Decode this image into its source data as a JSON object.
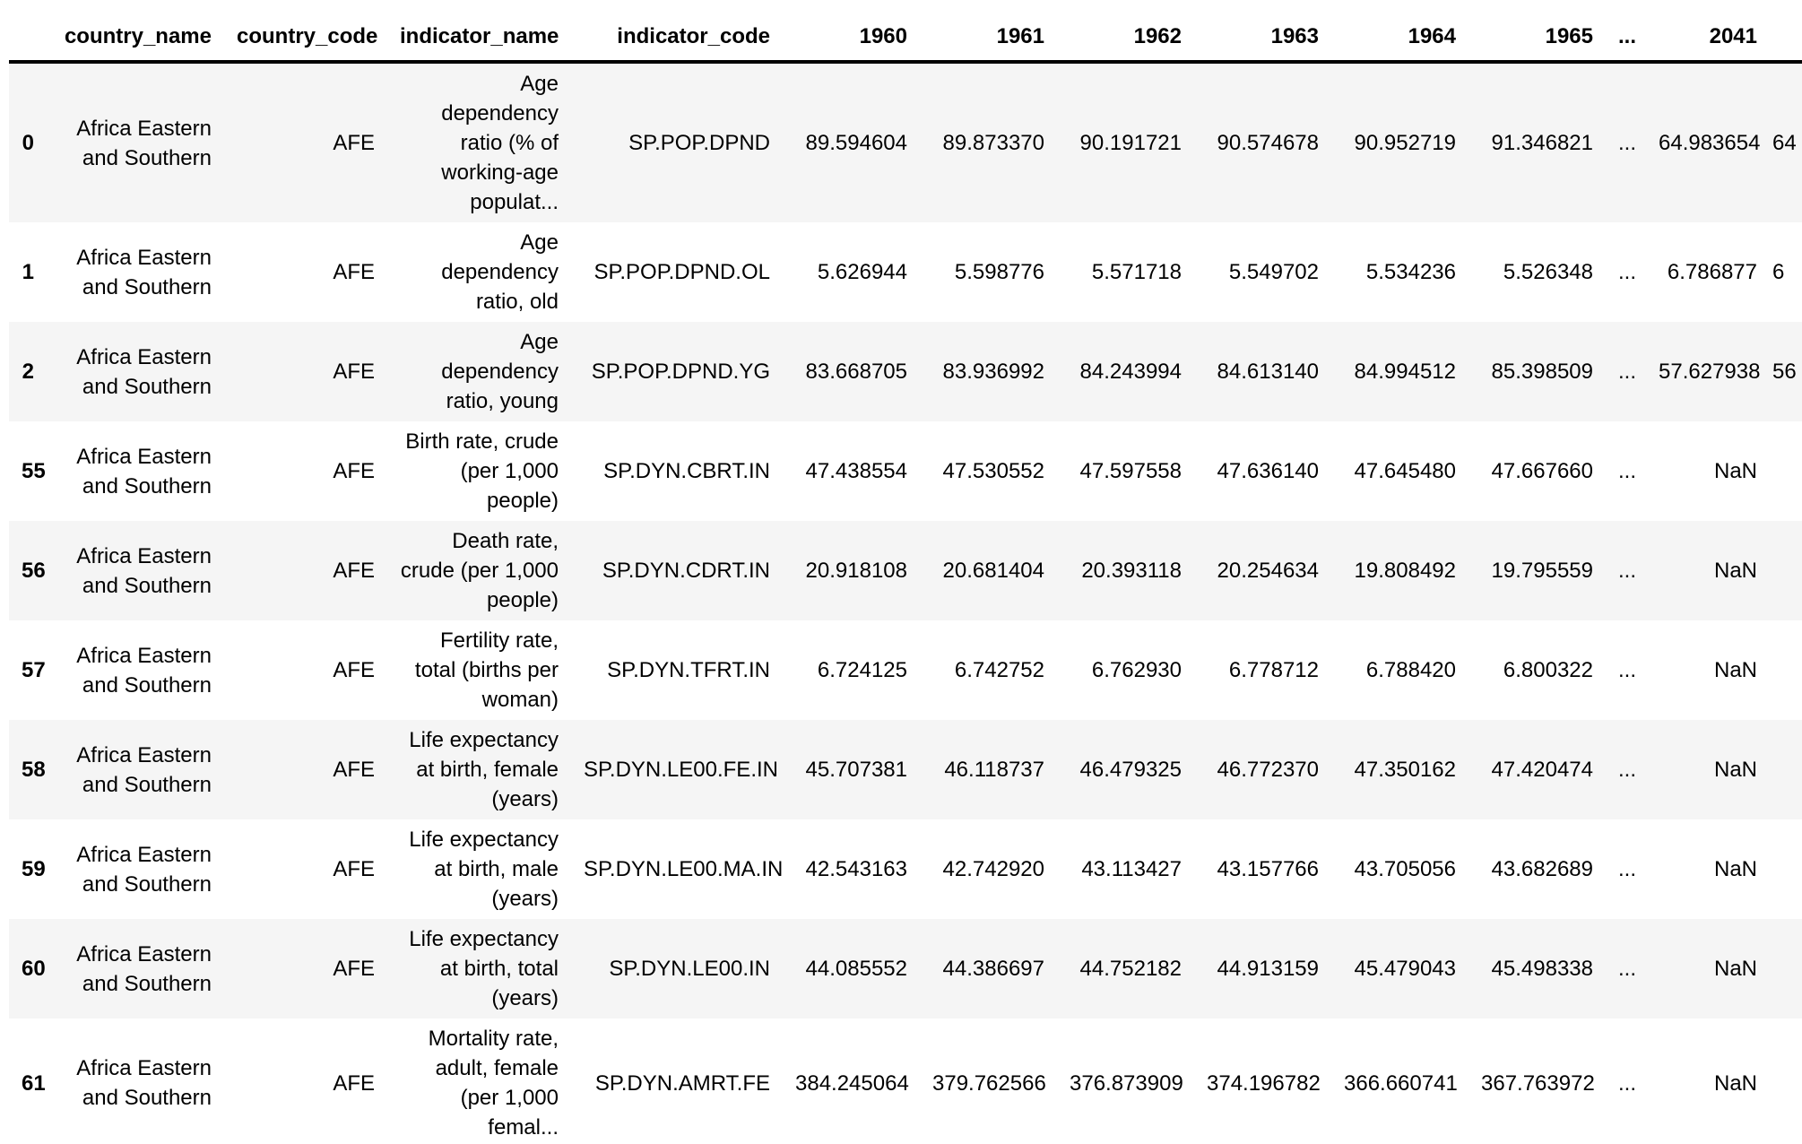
{
  "colors": {
    "row_stripe": "#f5f5f5",
    "header_rule": "#000000",
    "text": "#000000",
    "background": "#ffffff"
  },
  "table": {
    "columns": [
      "",
      "country_name",
      "country_code",
      "indicator_name",
      "indicator_code",
      "1960",
      "1961",
      "1962",
      "1963",
      "1964",
      "1965",
      "...",
      "2041",
      ""
    ],
    "rows": [
      [
        "0",
        "Africa Eastern\nand Southern",
        "AFE",
        "Age\ndependency\nratio (% of\nworking-age\npopulat...",
        "SP.POP.DPND",
        "89.594604",
        "89.873370",
        "90.191721",
        "90.574678",
        "90.952719",
        "91.346821",
        "...",
        "64.983654",
        "64"
      ],
      [
        "1",
        "Africa Eastern\nand Southern",
        "AFE",
        "Age\ndependency\nratio, old",
        "SP.POP.DPND.OL",
        "5.626944",
        "5.598776",
        "5.571718",
        "5.549702",
        "5.534236",
        "5.526348",
        "...",
        "6.786877",
        "6"
      ],
      [
        "2",
        "Africa Eastern\nand Southern",
        "AFE",
        "Age\ndependency\nratio, young",
        "SP.POP.DPND.YG",
        "83.668705",
        "83.936992",
        "84.243994",
        "84.613140",
        "84.994512",
        "85.398509",
        "...",
        "57.627938",
        "56"
      ],
      [
        "55",
        "Africa Eastern\nand Southern",
        "AFE",
        "Birth rate, crude\n(per 1,000\npeople)",
        "SP.DYN.CBRT.IN",
        "47.438554",
        "47.530552",
        "47.597558",
        "47.636140",
        "47.645480",
        "47.667660",
        "...",
        "NaN",
        ""
      ],
      [
        "56",
        "Africa Eastern\nand Southern",
        "AFE",
        "Death rate,\ncrude (per 1,000\npeople)",
        "SP.DYN.CDRT.IN",
        "20.918108",
        "20.681404",
        "20.393118",
        "20.254634",
        "19.808492",
        "19.795559",
        "...",
        "NaN",
        ""
      ],
      [
        "57",
        "Africa Eastern\nand Southern",
        "AFE",
        "Fertility rate,\ntotal (births per\nwoman)",
        "SP.DYN.TFRT.IN",
        "6.724125",
        "6.742752",
        "6.762930",
        "6.778712",
        "6.788420",
        "6.800322",
        "...",
        "NaN",
        ""
      ],
      [
        "58",
        "Africa Eastern\nand Southern",
        "AFE",
        "Life expectancy\nat birth, female\n(years)",
        "SP.DYN.LE00.FE.IN",
        "45.707381",
        "46.118737",
        "46.479325",
        "46.772370",
        "47.350162",
        "47.420474",
        "...",
        "NaN",
        ""
      ],
      [
        "59",
        "Africa Eastern\nand Southern",
        "AFE",
        "Life expectancy\nat birth, male\n(years)",
        "SP.DYN.LE00.MA.IN",
        "42.543163",
        "42.742920",
        "43.113427",
        "43.157766",
        "43.705056",
        "43.682689",
        "...",
        "NaN",
        ""
      ],
      [
        "60",
        "Africa Eastern\nand Southern",
        "AFE",
        "Life expectancy\nat birth, total\n(years)",
        "SP.DYN.LE00.IN",
        "44.085552",
        "44.386697",
        "44.752182",
        "44.913159",
        "45.479043",
        "45.498338",
        "...",
        "NaN",
        ""
      ],
      [
        "61",
        "Africa Eastern\nand Southern",
        "AFE",
        "Mortality rate,\nadult, female\n(per 1,000\nfemal...",
        "SP.DYN.AMRT.FE",
        "384.245064",
        "379.762566",
        "376.873909",
        "374.196782",
        "366.660741",
        "367.763972",
        "...",
        "NaN",
        ""
      ]
    ]
  }
}
